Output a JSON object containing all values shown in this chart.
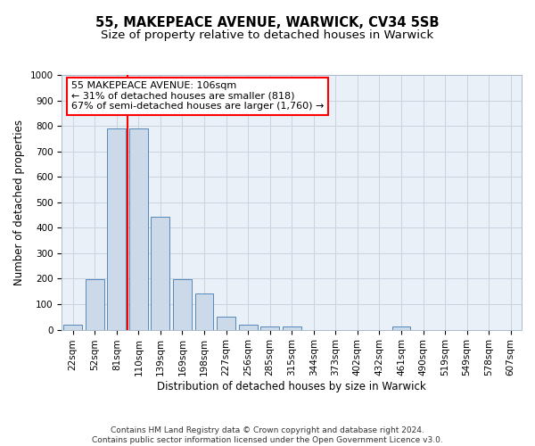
{
  "title_line1": "55, MAKEPEACE AVENUE, WARWICK, CV34 5SB",
  "title_line2": "Size of property relative to detached houses in Warwick",
  "xlabel": "Distribution of detached houses by size in Warwick",
  "ylabel": "Number of detached properties",
  "categories": [
    "22sqm",
    "52sqm",
    "81sqm",
    "110sqm",
    "139sqm",
    "169sqm",
    "198sqm",
    "227sqm",
    "256sqm",
    "285sqm",
    "315sqm",
    "344sqm",
    "373sqm",
    "402sqm",
    "432sqm",
    "461sqm",
    "490sqm",
    "519sqm",
    "549sqm",
    "578sqm",
    "607sqm"
  ],
  "values": [
    18,
    197,
    790,
    790,
    442,
    197,
    143,
    50,
    18,
    12,
    12,
    0,
    0,
    0,
    0,
    12,
    0,
    0,
    0,
    0,
    0
  ],
  "bar_color": "#ccd9e8",
  "bar_edge_color": "#5588bb",
  "grid_color": "#c8d4e0",
  "background_color": "#eaf0f8",
  "vline_x_index": 3,
  "vline_color": "red",
  "annotation_text": "55 MAKEPEACE AVENUE: 106sqm\n← 31% of detached houses are smaller (818)\n67% of semi-detached houses are larger (1,760) →",
  "annotation_box_color": "white",
  "annotation_box_edge": "red",
  "ylim": [
    0,
    1000
  ],
  "yticks": [
    0,
    100,
    200,
    300,
    400,
    500,
    600,
    700,
    800,
    900,
    1000
  ],
  "footnote": "Contains HM Land Registry data © Crown copyright and database right 2024.\nContains public sector information licensed under the Open Government Licence v3.0.",
  "title_fontsize": 10.5,
  "subtitle_fontsize": 9.5,
  "axis_label_fontsize": 8.5,
  "tick_fontsize": 7.5,
  "annotation_fontsize": 8,
  "footnote_fontsize": 6.5
}
